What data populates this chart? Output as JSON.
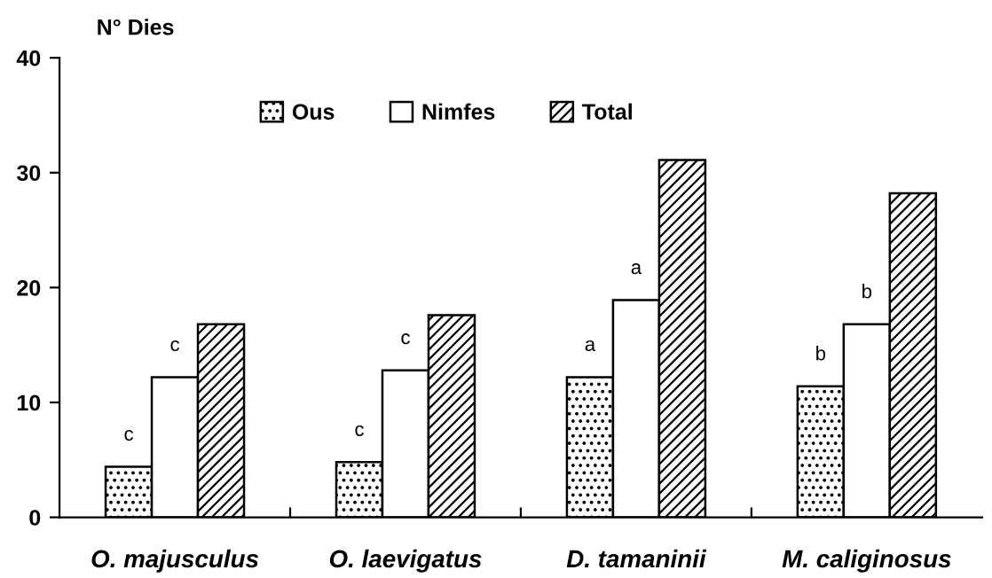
{
  "chart_data": {
    "type": "bar",
    "ylabel": "N° Dies",
    "categories": [
      "O. majusculus",
      "O. laevigatus",
      "D. tamaninii",
      "M. caliginosus"
    ],
    "series": [
      {
        "name": "Ous",
        "color": "#000000",
        "values": [
          4.4,
          4.8,
          12.2,
          11.4
        ],
        "value_labels": [
          "c",
          "c",
          "a",
          "b"
        ]
      },
      {
        "name": "Nimfes",
        "color": "#ffffff",
        "values": [
          12.2,
          12.8,
          18.9,
          16.8
        ],
        "value_labels": [
          "c",
          "c",
          "a",
          "b"
        ]
      },
      {
        "name": "Total",
        "color": "#000000",
        "values": [
          16.8,
          17.6,
          31.1,
          28.2
        ]
      }
    ],
    "ylim": [
      0,
      40
    ],
    "yticks": [
      0,
      10,
      20,
      30,
      40
    ],
    "grid": false,
    "legend": "top"
  }
}
